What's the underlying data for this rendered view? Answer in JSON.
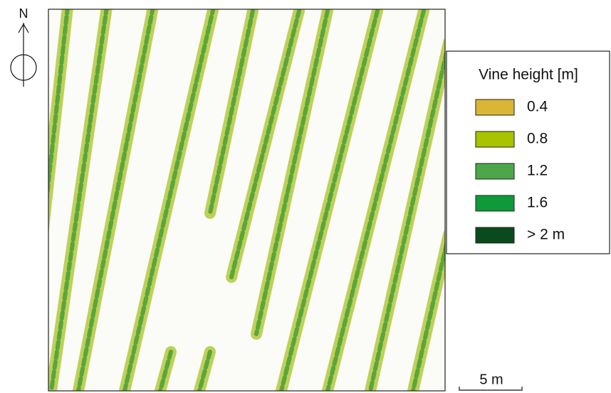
{
  "north_label": "N",
  "legend": {
    "title": "Vine height [m]",
    "items": [
      {
        "label": "0.4",
        "color": "#d9b635"
      },
      {
        "label": "0.8",
        "color": "#a8c300"
      },
      {
        "label": "1.2",
        "color": "#4ea64b"
      },
      {
        "label": "1.6",
        "color": "#0f9a3a"
      },
      {
        "label": "> 2 m",
        "color": "#0b4a1c"
      }
    ]
  },
  "scale_bar": {
    "label": "5 m"
  }
}
